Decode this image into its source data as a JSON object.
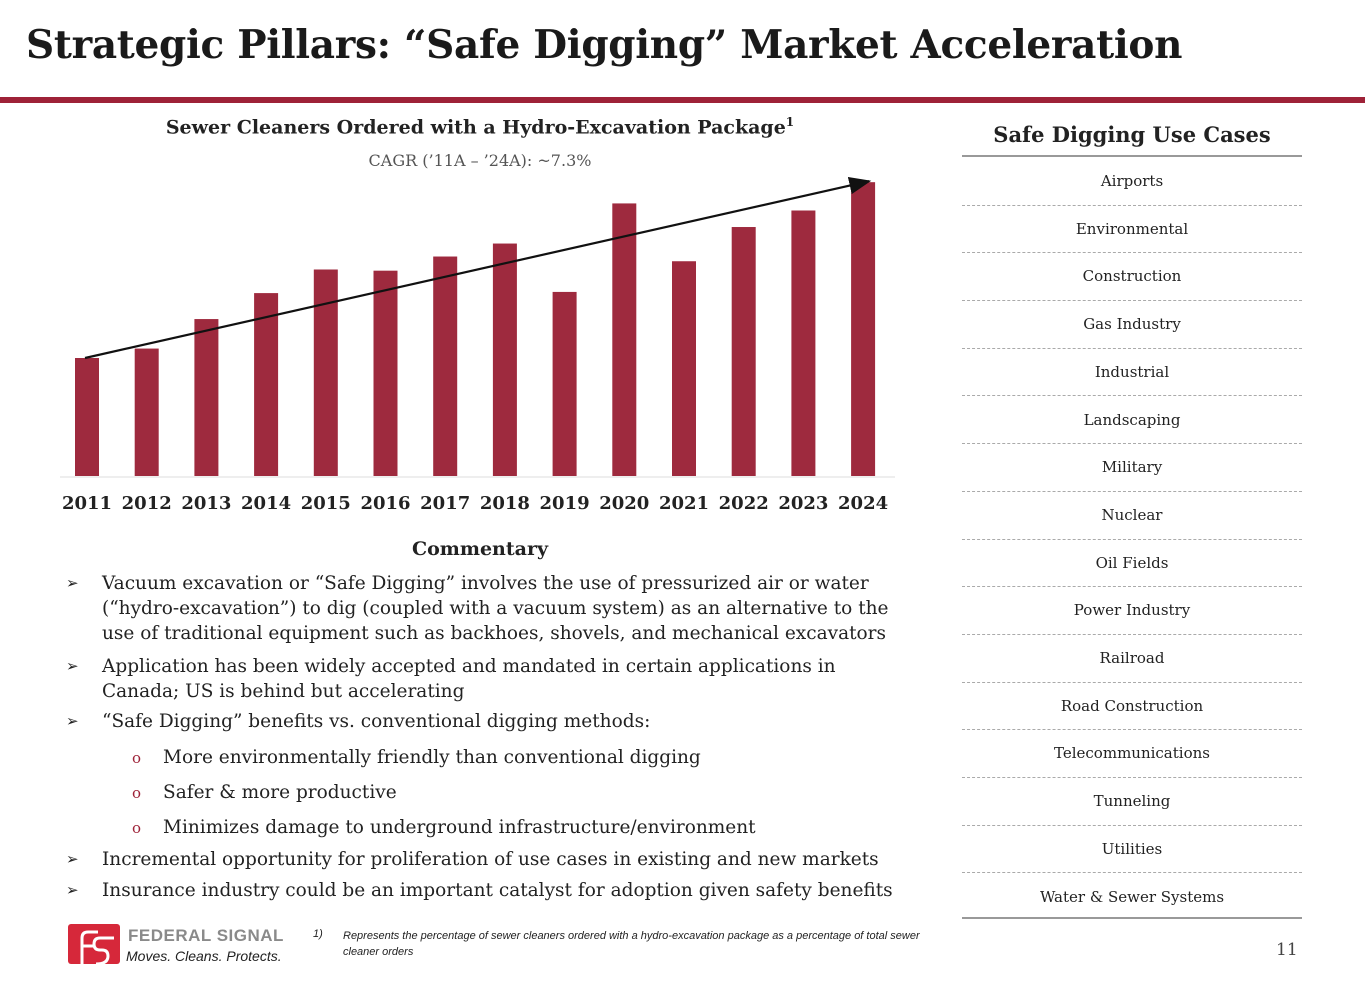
{
  "title": "Strategic Pillars: “Safe Digging” Market Acceleration",
  "chart_data": {
    "type": "bar",
    "title": "Sewer Cleaners Ordered with a Hydro-Excavation Package",
    "title_footnote": "1",
    "subtitle": "CAGR (’11A – ’24A): ~7.3%",
    "categories": [
      "2011",
      "2012",
      "2013",
      "2014",
      "2015",
      "2016",
      "2017",
      "2018",
      "2019",
      "2020",
      "2021",
      "2022",
      "2023",
      "2024"
    ],
    "values": [
      100,
      108,
      133,
      155,
      175,
      174,
      186,
      197,
      156,
      231,
      182,
      211,
      225,
      249
    ],
    "value_units": "relative index (2011 = 100, estimated; no y-axis shown)",
    "trend_arrow": {
      "from": "2011",
      "to": "2024"
    },
    "xlabel": "",
    "ylabel": "",
    "ylim": [
      0,
      260
    ],
    "grid": false,
    "color": "#9e2a3e"
  },
  "commentary": {
    "heading": "Commentary",
    "bullets": [
      "Vacuum excavation or “Safe Digging” involves the use of pressurized air or water (“hydro-excavation”) to dig (coupled with a vacuum system) as an alternative to the use of traditional equipment such as backhoes, shovels, and mechanical excavators",
      "Application has been widely accepted and mandated in certain applications in Canada; US is behind but accelerating",
      "“Safe Digging” benefits vs. conventional digging methods:",
      "Incremental opportunity for proliferation of use cases in existing and new markets",
      "Insurance industry could be an important catalyst for adoption given safety benefits"
    ],
    "sub_bullets": [
      "More environmentally friendly than conventional digging",
      "Safer & more productive",
      "Minimizes damage to underground infrastructure/environment"
    ],
    "bullet_marker": "➢",
    "sub_marker": "o"
  },
  "use_cases": {
    "heading": "Safe Digging Use Cases",
    "items": [
      "Airports",
      "Environmental",
      "Construction",
      "Gas Industry",
      "Industrial",
      "Landscaping",
      "Military",
      "Nuclear",
      "Oil Fields",
      "Power Industry",
      "Railroad",
      "Road Construction",
      "Telecommunications",
      "Tunneling",
      "Utilities",
      "Water & Sewer Systems"
    ]
  },
  "footer": {
    "brand": "FEDERAL SIGNAL",
    "tagline": "Moves. Cleans. Protects.",
    "footnote_number": "1)",
    "footnote": "Represents the percentage of sewer cleaners ordered with a hydro-excavation package as a percentage of total sewer cleaner orders",
    "page": "11"
  }
}
